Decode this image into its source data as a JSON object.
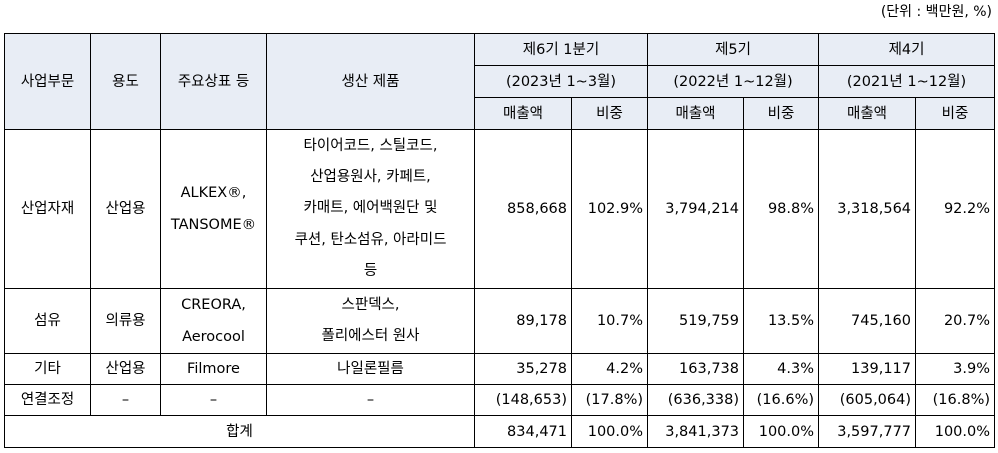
{
  "unit_note": "(단위 : 백만원, %)",
  "headers": {
    "segment": "사업부문",
    "use": "용도",
    "brand": "주요상표 등",
    "product": "생산 제품",
    "periods": [
      {
        "name": "제6기 1분기",
        "range": "(2023년 1~3월)"
      },
      {
        "name": "제5기",
        "range": "(2022년 1~12월)"
      },
      {
        "name": "제4기",
        "range": "(2021년 1~12월)"
      }
    ],
    "sales": "매출액",
    "share": "비중"
  },
  "rows": [
    {
      "segment": "산업자재",
      "use": "산업용",
      "brand_lines": [
        "ALKEX®,",
        "TANSOME®"
      ],
      "product_lines": [
        "타이어코드, 스틸코드,",
        "산업용원사, 카페트,",
        "카매트, 에어백원단 및",
        "쿠션, 탄소섬유, 아라미드",
        "등"
      ],
      "values": [
        "858,668",
        "102.9%",
        "3,794,214",
        "98.8%",
        "3,318,564",
        "92.2%"
      ]
    },
    {
      "segment": "섬유",
      "use": "의류용",
      "brand_lines": [
        "CREORA,",
        "Aerocool"
      ],
      "product_lines": [
        "스판덱스,",
        "폴리에스터 원사"
      ],
      "values": [
        "89,178",
        "10.7%",
        "519,759",
        "13.5%",
        "745,160",
        "20.7%"
      ]
    },
    {
      "segment": "기타",
      "use": "산업용",
      "brand_lines": [
        "Filmore"
      ],
      "product_lines": [
        "나일론필름"
      ],
      "values": [
        "35,278",
        "4.2%",
        "163,738",
        "4.3%",
        "139,117",
        "3.9%"
      ]
    },
    {
      "segment": "연결조정",
      "use": "–",
      "brand_lines": [
        "–"
      ],
      "product_lines": [
        "–"
      ],
      "values": [
        "(148,653)",
        "(17.8%)",
        "(636,338)",
        "(16.6%)",
        "(605,064)",
        "(16.8%)"
      ]
    }
  ],
  "total": {
    "label": "합계",
    "values": [
      "834,471",
      "100.0%",
      "3,841,373",
      "100.0%",
      "3,597,777",
      "100.0%"
    ]
  }
}
